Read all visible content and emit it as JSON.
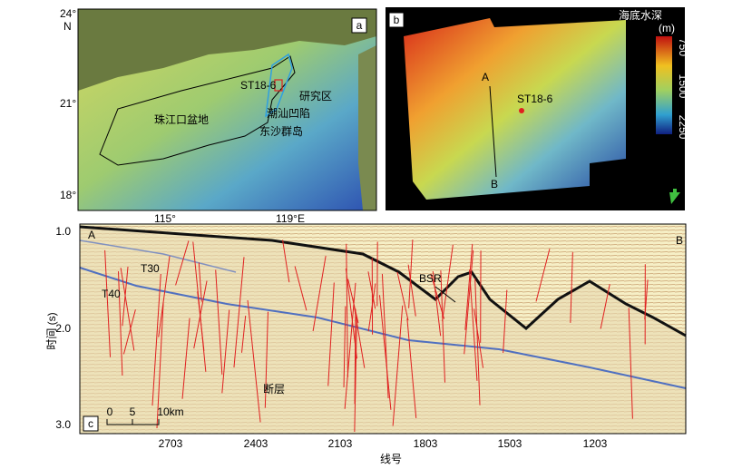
{
  "panels": {
    "a": {
      "label": "a",
      "lat_labels": [
        "24°",
        "N",
        "21°",
        "18°"
      ],
      "lon_labels": [
        "115°",
        "119°E"
      ],
      "site": "ST18-6",
      "study_area": "研究区",
      "sag": "潮汕凹陷",
      "islands": "东沙群岛",
      "basin": "珠江口盆地"
    },
    "b": {
      "label": "b",
      "legend_title": "海底水深",
      "legend_unit": "(m)",
      "legend_ticks": [
        "750",
        "1500",
        "2250"
      ],
      "line_start": "A",
      "line_end": "B",
      "site": "ST18-6"
    },
    "c": {
      "label": "c",
      "y_ticks": [
        "1.0",
        "2.0",
        "3.0"
      ],
      "y_title": "时间 (s)",
      "x_ticks": [
        "2703",
        "2403",
        "2103",
        "1803",
        "1503",
        "1203"
      ],
      "x_title": "线号",
      "start": "A",
      "end": "B",
      "horizons": [
        "T30",
        "T40"
      ],
      "bsr": "BSR",
      "fault": "断层",
      "scale": [
        "0",
        "5",
        "10km"
      ]
    }
  }
}
